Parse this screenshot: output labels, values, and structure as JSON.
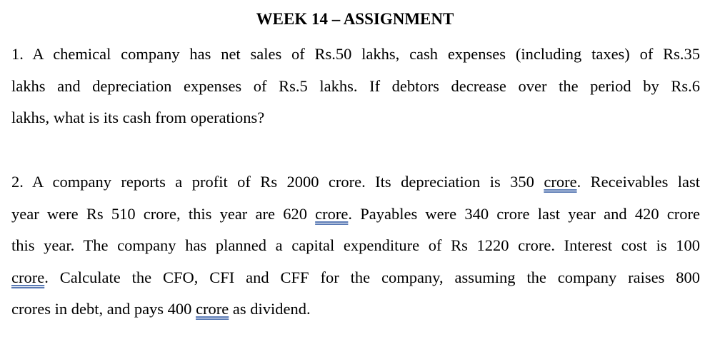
{
  "document": {
    "title": "WEEK 14 – ASSIGNMENT",
    "question1": {
      "lines": [
        "1. A chemical company has net sales of Rs.50 lakhs, cash expenses (including taxes) of Rs.35",
        "lakhs and depreciation expenses of Rs.5 lakhs. If debtors decrease over the period by Rs.6",
        "lakhs, what is its cash from operations?"
      ]
    },
    "question2": {
      "line1_a": "2. A company reports a profit of Rs 2000 crore. Its depreciation is 350 ",
      "line1_w": "crore",
      "line1_b": ". Receivables last",
      "line2_a": "year were Rs 510 crore, this year are 620 ",
      "line2_w": "crore",
      "line2_b": ". Payables were 340 crore last year and 420 crore",
      "line3": "this year. The company has planned a capital expenditure of Rs 1220 crore. Interest cost is 100",
      "line4_w": "crore",
      "line4_b": ". Calculate the CFO, CFI and CFF for the company, assuming the company raises 800",
      "line5_a": "crores in debt, and pays 400 ",
      "line5_w": "crore",
      "line5_b": " as dividend."
    }
  }
}
